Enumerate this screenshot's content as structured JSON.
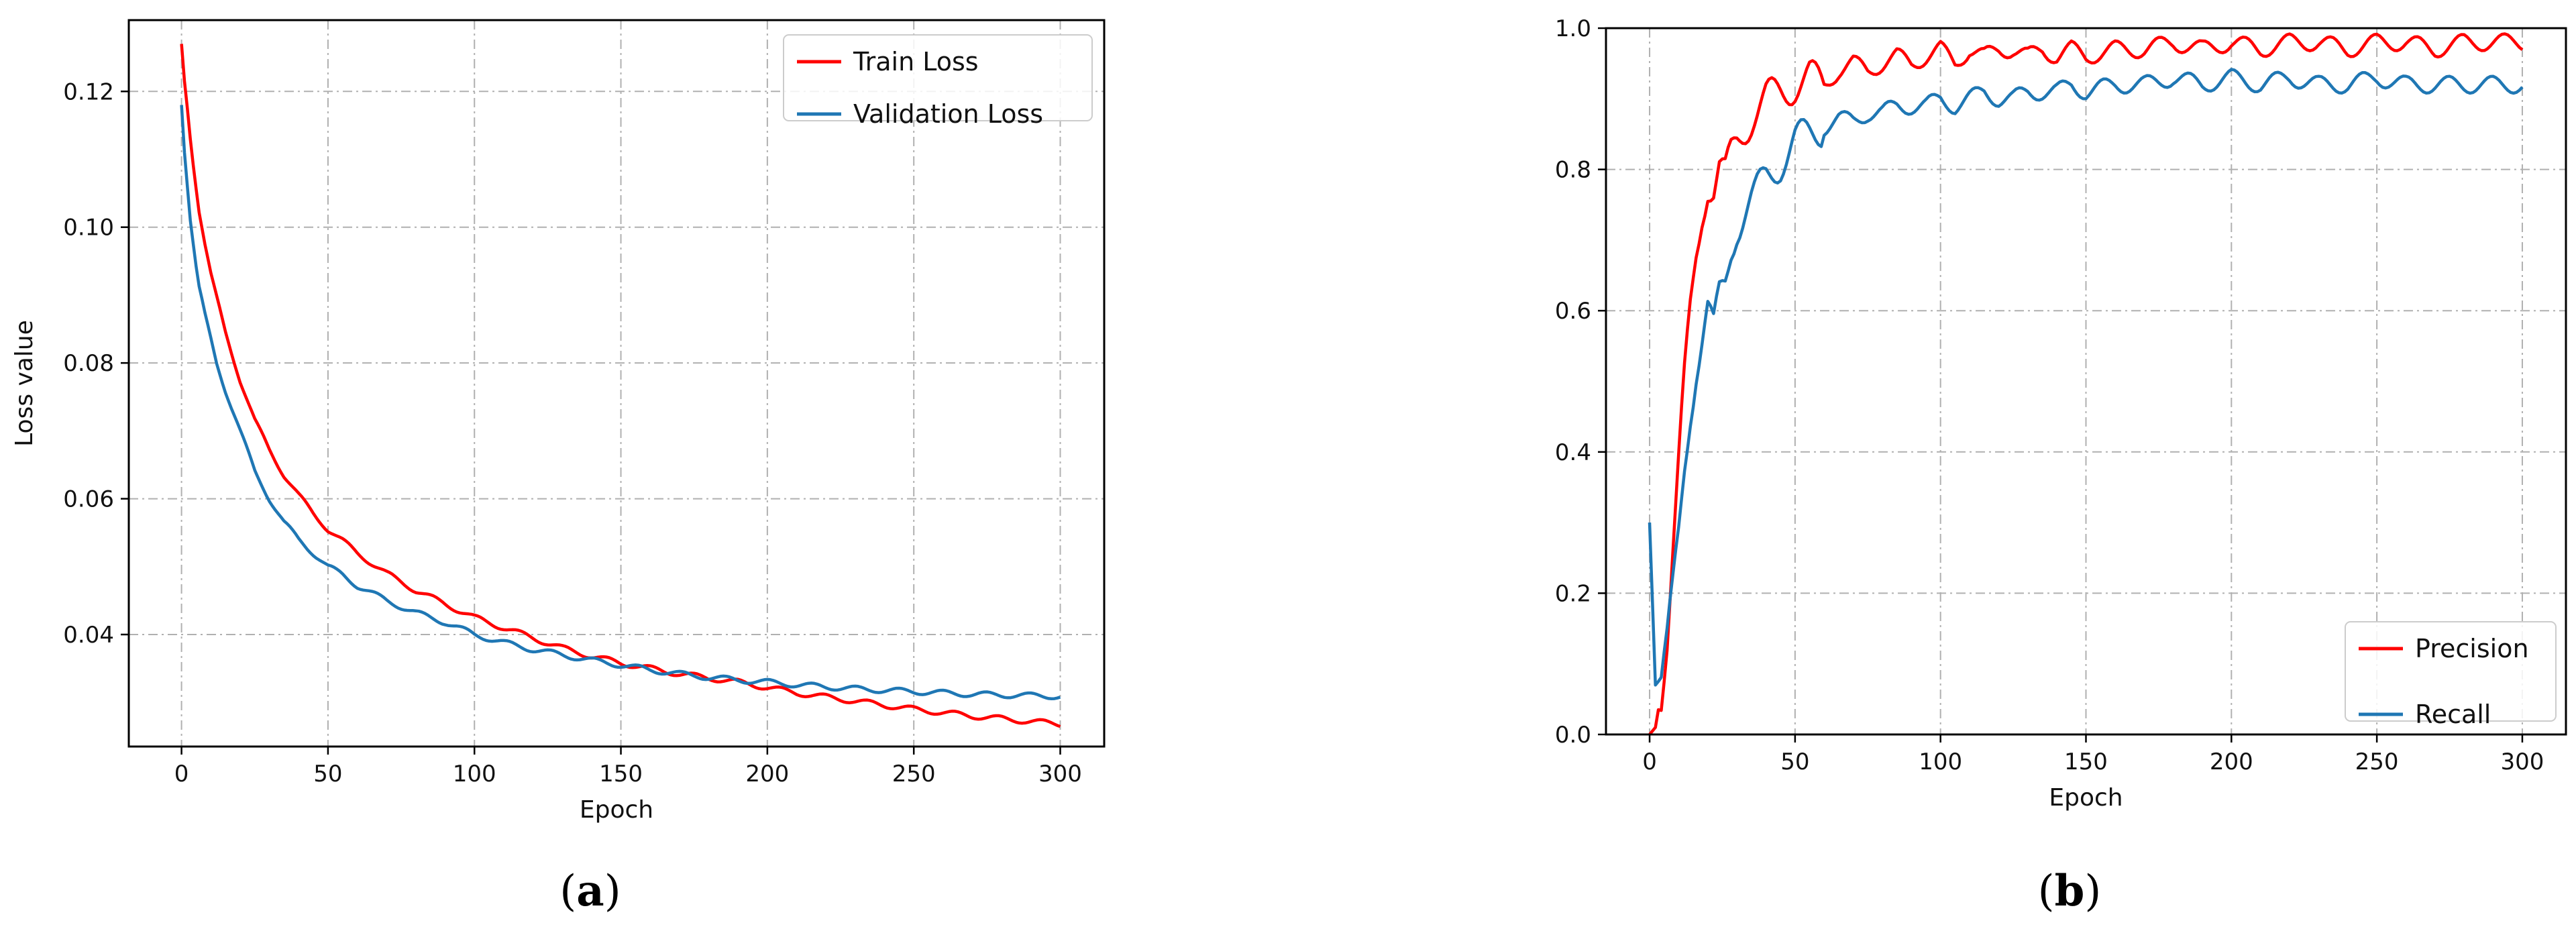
{
  "chart_data": [
    {
      "type": "line",
      "caption": {
        "open": "(",
        "letter": "a",
        "close": ")"
      },
      "title": "",
      "xlabel": "Epoch",
      "ylabel": "Loss value",
      "xlim": [
        -18,
        315
      ],
      "ylim": [
        0.0235,
        0.1305
      ],
      "xticks": [
        0,
        50,
        100,
        150,
        200,
        250,
        300
      ],
      "yticks": [
        0.04,
        0.06,
        0.08,
        0.1,
        0.12
      ],
      "ytick_labels": [
        "0.04",
        "0.06",
        "0.08",
        "0.10",
        "0.12"
      ],
      "grid": true,
      "legend": "top-right",
      "colors": {
        "Train Loss": "#ff0000",
        "Validation Loss": "#1f77b4"
      },
      "series": [
        {
          "name": "Train Loss",
          "x": [
            0,
            1,
            2,
            3,
            4,
            5,
            6,
            8,
            10,
            12,
            15,
            20,
            25,
            30,
            35,
            40,
            45,
            50,
            55,
            60,
            70,
            80,
            90,
            100,
            110,
            120,
            130,
            140,
            150,
            160,
            170,
            180,
            190,
            200,
            210,
            220,
            230,
            240,
            250,
            260,
            270,
            280,
            290,
            300
          ],
          "y": [
            0.127,
            0.1215,
            0.1175,
            0.113,
            0.1095,
            0.106,
            0.1025,
            0.0975,
            0.093,
            0.0895,
            0.0845,
            0.0775,
            0.0715,
            0.0672,
            0.0635,
            0.0605,
            0.0578,
            0.0555,
            0.0538,
            0.052,
            0.049,
            0.0465,
            0.0445,
            0.0425,
            0.041,
            0.0395,
            0.038,
            0.0368,
            0.0358,
            0.035,
            0.0342,
            0.0336,
            0.033,
            0.0322,
            0.0314,
            0.0308,
            0.0302,
            0.0296,
            0.029,
            0.0285,
            0.028,
            0.0276,
            0.0272,
            0.0268
          ]
        },
        {
          "name": "Validation Loss",
          "x": [
            0,
            1,
            2,
            3,
            4,
            5,
            6,
            8,
            10,
            12,
            15,
            20,
            25,
            30,
            35,
            40,
            45,
            50,
            55,
            60,
            70,
            80,
            90,
            100,
            110,
            120,
            130,
            140,
            150,
            160,
            170,
            180,
            190,
            200,
            210,
            220,
            230,
            240,
            250,
            260,
            270,
            280,
            290,
            300
          ],
          "y": [
            0.118,
            0.111,
            0.106,
            0.101,
            0.0975,
            0.094,
            0.091,
            0.087,
            0.0835,
            0.08,
            0.076,
            0.07,
            0.064,
            0.06,
            0.0565,
            0.054,
            0.052,
            0.05,
            0.0488,
            0.0472,
            0.045,
            0.0432,
            0.0418,
            0.04,
            0.0388,
            0.0378,
            0.037,
            0.0362,
            0.0355,
            0.0348,
            0.0342,
            0.0337,
            0.0333,
            0.033,
            0.0326,
            0.0323,
            0.032,
            0.0318,
            0.0316,
            0.0314,
            0.0312,
            0.0311,
            0.031,
            0.0309
          ]
        }
      ]
    },
    {
      "type": "line",
      "caption": {
        "open": "(",
        "letter": "b",
        "close": ")"
      },
      "title": "",
      "xlabel": "Epoch",
      "ylabel": "",
      "xlim": [
        -15,
        315
      ],
      "ylim": [
        0,
        1.0
      ],
      "xticks": [
        0,
        50,
        100,
        150,
        200,
        250,
        300
      ],
      "yticks": [
        0.0,
        0.2,
        0.4,
        0.6,
        0.8,
        1.0
      ],
      "ytick_labels": [
        "0.0",
        "0.2",
        "0.4",
        "0.6",
        "0.8",
        "1.0"
      ],
      "grid": true,
      "legend": "bottom-right",
      "colors": {
        "Precision": "#ff0000",
        "Recall": "#1f77b4"
      },
      "series": [
        {
          "name": "Precision",
          "x": [
            0,
            2,
            4,
            6,
            8,
            10,
            12,
            14,
            16,
            18,
            20,
            22,
            24,
            26,
            28,
            30,
            33,
            36,
            40,
            45,
            50,
            55,
            60,
            65,
            70,
            75,
            80,
            85,
            90,
            95,
            100,
            105,
            110,
            115,
            120,
            125,
            130,
            135,
            140,
            145,
            150,
            160,
            170,
            180,
            190,
            200,
            210,
            220,
            230,
            240,
            250,
            260,
            270,
            280,
            290,
            300
          ],
          "y": [
            0.0,
            0.01,
            0.06,
            0.14,
            0.26,
            0.38,
            0.5,
            0.6,
            0.68,
            0.74,
            0.78,
            0.77,
            0.8,
            0.79,
            0.82,
            0.84,
            0.86,
            0.88,
            0.9,
            0.91,
            0.92,
            0.93,
            0.92,
            0.94,
            0.95,
            0.94,
            0.95,
            0.96,
            0.95,
            0.96,
            0.97,
            0.95,
            0.97,
            0.96,
            0.97,
            0.97,
            0.96,
            0.97,
            0.96,
            0.97,
            0.96,
            0.97,
            0.97,
            0.98,
            0.97,
            0.98,
            0.97,
            0.98,
            0.98,
            0.97,
            0.98,
            0.98,
            0.97,
            0.98,
            0.98,
            0.98
          ]
        },
        {
          "name": "Recall",
          "x": [
            0,
            2,
            4,
            6,
            8,
            10,
            12,
            14,
            16,
            18,
            20,
            22,
            24,
            26,
            28,
            30,
            33,
            36,
            40,
            45,
            50,
            55,
            60,
            65,
            70,
            75,
            80,
            85,
            90,
            95,
            100,
            105,
            110,
            115,
            120,
            125,
            130,
            135,
            140,
            145,
            150,
            160,
            170,
            180,
            190,
            200,
            210,
            220,
            230,
            240,
            250,
            260,
            270,
            280,
            290,
            300
          ],
          "y": [
            0.3,
            0.07,
            0.08,
            0.13,
            0.2,
            0.28,
            0.38,
            0.46,
            0.52,
            0.56,
            0.6,
            0.57,
            0.62,
            0.64,
            0.69,
            0.72,
            0.74,
            0.76,
            0.79,
            0.81,
            0.84,
            0.85,
            0.86,
            0.87,
            0.87,
            0.88,
            0.88,
            0.89,
            0.89,
            0.89,
            0.9,
            0.89,
            0.9,
            0.91,
            0.9,
            0.9,
            0.91,
            0.91,
            0.91,
            0.92,
            0.91,
            0.92,
            0.92,
            0.93,
            0.92,
            0.93,
            0.92,
            0.93,
            0.92,
            0.92,
            0.93,
            0.92,
            0.92,
            0.92,
            0.92,
            0.92
          ]
        }
      ]
    }
  ]
}
